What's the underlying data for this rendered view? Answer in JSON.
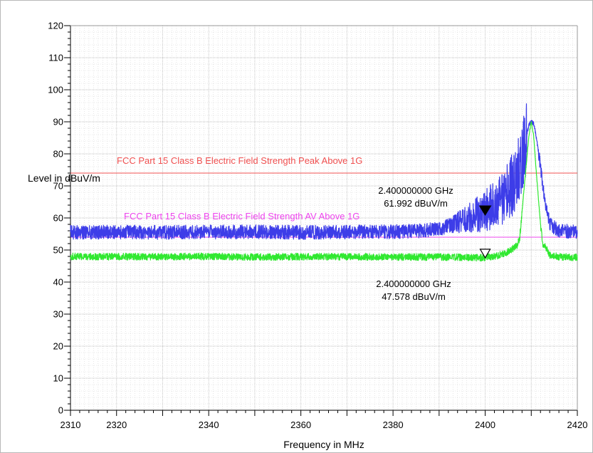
{
  "chart_data": {
    "type": "line",
    "title": "",
    "xlabel": "Frequency in MHz",
    "ylabel": "Level in dBuV/m",
    "xlim": [
      2310,
      2420
    ],
    "ylim": [
      0,
      120
    ],
    "x_ticks": [
      "2310",
      "2320",
      "2340",
      "2360",
      "2380",
      "2400",
      "2420"
    ],
    "x_tick_values": [
      2310,
      2320,
      2340,
      2360,
      2380,
      2400,
      2420
    ],
    "y_ticks": [
      "0",
      "10",
      "20",
      "30",
      "40",
      "50",
      "60",
      "70",
      "80",
      "90",
      "100",
      "110",
      "120"
    ],
    "y_tick_values": [
      0,
      10,
      20,
      30,
      40,
      50,
      60,
      70,
      80,
      90,
      100,
      110,
      120
    ],
    "grid": true,
    "limit_lines": [
      {
        "label": "FCC Part 15 Class B Electric Field Strength Peak Above 1G",
        "value": 74,
        "color": "#f05050"
      },
      {
        "label": "FCC Part 15 Class B Electric Field Strength AV Above 1G",
        "value": 54,
        "color": "#ee44ee"
      }
    ],
    "series": [
      {
        "color": "#3d3de8",
        "x": [
          2310,
          2320,
          2330,
          2340,
          2350,
          2360,
          2370,
          2380,
          2385,
          2390,
          2394,
          2398,
          2400,
          2402,
          2404,
          2406,
          2407,
          2408,
          2409,
          2409.5,
          2410,
          2410.5,
          2411,
          2412,
          2413,
          2414,
          2416,
          2418,
          2420
        ],
        "y": [
          55.5,
          55.6,
          55.5,
          55.6,
          55.7,
          55.5,
          55.6,
          55.7,
          55.9,
          56.5,
          58.5,
          60.8,
          62.0,
          64.0,
          66.5,
          70.5,
          74.0,
          79.0,
          86.0,
          89.0,
          90.0,
          89.5,
          86.0,
          76.0,
          65.0,
          58.0,
          56.0,
          55.8,
          55.6
        ]
      },
      {
        "color": "#30e830",
        "x": [
          2310,
          2320,
          2330,
          2340,
          2350,
          2360,
          2370,
          2380,
          2390,
          2395,
          2398,
          2400,
          2402,
          2404,
          2405.5,
          2406.5,
          2407,
          2407.5,
          2408,
          2409,
          2409.5,
          2410,
          2410.5,
          2411,
          2412,
          2412.5,
          2413,
          2413.5,
          2414,
          2416,
          2418,
          2420
        ],
        "y": [
          48.0,
          47.9,
          47.9,
          48.0,
          47.8,
          47.9,
          47.9,
          47.8,
          47.8,
          47.7,
          47.6,
          47.6,
          48.0,
          48.8,
          50.0,
          51.0,
          51.5,
          54.0,
          62.0,
          78.0,
          86.0,
          90.0,
          86.0,
          76.0,
          58.0,
          52.0,
          51.0,
          50.0,
          48.5,
          47.9,
          47.8,
          47.7
        ]
      }
    ],
    "markers": [
      {
        "x": 2400,
        "y": 61.992,
        "line1": "2.400000000 GHz",
        "line2": "61.992 dBuV/m",
        "style": "filled"
      },
      {
        "x": 2400,
        "y": 47.578,
        "line1": "2.400000000 GHz",
        "line2": "47.578 dBuV/m",
        "style": "open"
      }
    ]
  }
}
